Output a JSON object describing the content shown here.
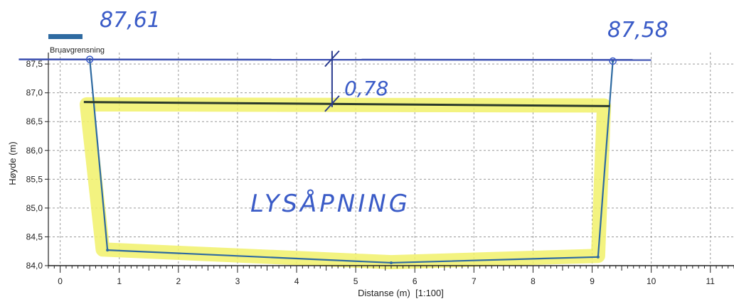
{
  "chart_data": {
    "type": "line",
    "title": "",
    "xlabel": "Distanse (m)",
    "scale_label": "[1:100]",
    "ylabel": "Høyde (m)",
    "xlim": [
      -0.2,
      11.4
    ],
    "ylim": [
      84.0,
      87.6
    ],
    "x_ticks": [
      0,
      1,
      2,
      3,
      4,
      5,
      6,
      7,
      8,
      9,
      10,
      11
    ],
    "y_ticks": [
      84.0,
      84.5,
      85.0,
      85.5,
      86.0,
      86.5,
      87.0,
      87.5
    ],
    "y_tick_labels": [
      "84,0",
      "84,5",
      "85,0",
      "85,5",
      "86,0",
      "86,5",
      "87,0",
      "87,5"
    ],
    "grid": true,
    "legend": {
      "placement": "top-left",
      "entries": [
        "Bruavgrensning"
      ]
    },
    "series": [
      {
        "name": "Bruavgrensning",
        "color": "#2e6aa1",
        "x": [
          0.5,
          0.8,
          5.6,
          9.1,
          9.35
        ],
        "y": [
          87.58,
          84.27,
          84.05,
          84.15,
          87.55
        ]
      }
    ],
    "annotations": {
      "left_elevation": "87,61",
      "right_elevation": "87,58",
      "clearance": "0,78",
      "opening_label": "LYSÅPNING",
      "colors": {
        "handwriting": "#3a5bc7",
        "highlight": "#f1f16a",
        "bridge": "#2e6aa1"
      },
      "top_line": {
        "x": [
          -0.7,
          10.0
        ],
        "y": [
          87.58,
          87.57
        ]
      },
      "deck_line": {
        "x": [
          0.4,
          9.3
        ],
        "y": [
          86.84,
          86.77
        ]
      },
      "dimension_x": 4.6
    }
  }
}
